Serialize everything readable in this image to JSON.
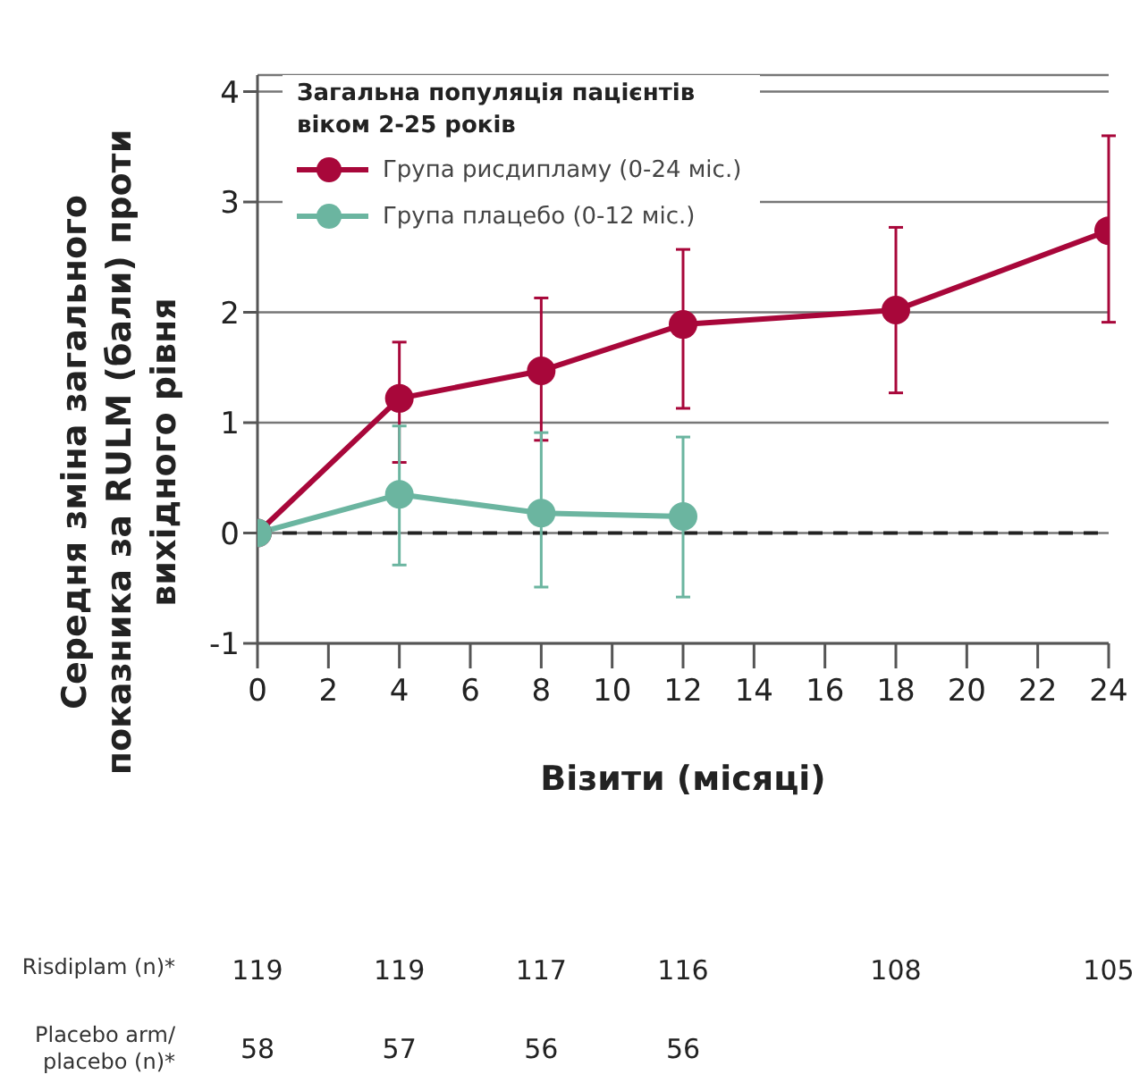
{
  "chart_data": {
    "type": "line",
    "legend_title": "Загальна популяція пацієнтів\nвіком 2-25 років",
    "xlabel": "Візити (місяці)",
    "ylabel": "Середня зміна загального\nпоказника за RULM (бали) проти\nвихідного рівня",
    "series": [
      {
        "name": "Група рисдипламу (0-24 міс.)",
        "color": "#a8073a",
        "x": [
          0,
          4,
          8,
          12,
          18,
          24
        ],
        "values": [
          0,
          1.22,
          1.47,
          1.89,
          2.02,
          2.74
        ],
        "errors": [
          null,
          [
            0.64,
            1.73
          ],
          [
            0.84,
            2.13
          ],
          [
            1.13,
            2.57
          ],
          [
            1.27,
            2.77
          ],
          [
            1.91,
            3.6
          ]
        ]
      },
      {
        "name": "Група плацебо (0-12 міс.)",
        "color": "#6bb5a0",
        "x": [
          0,
          4,
          8,
          12
        ],
        "values": [
          0,
          0.35,
          0.18,
          0.15
        ],
        "errors": [
          null,
          [
            -0.29,
            0.97
          ],
          [
            -0.49,
            0.91
          ],
          [
            -0.58,
            0.87
          ]
        ]
      }
    ],
    "xlim": [
      0,
      24
    ],
    "xticks": [
      0,
      2,
      4,
      6,
      8,
      10,
      12,
      14,
      16,
      18,
      20,
      22,
      24
    ],
    "ylim": [
      -1,
      4.15
    ],
    "yticks": [
      -1,
      0,
      1,
      2,
      3,
      4
    ],
    "grid": "y",
    "legend": "top left",
    "marker": "circle",
    "line_style": "solid",
    "ref_lines": [
      {
        "axis": "y",
        "value": 0,
        "color": "#222222",
        "line_style": "dashed"
      }
    ],
    "annotations": [
      "Risdiplam (n)*",
      "119",
      "119",
      "117",
      "116",
      "108",
      "105",
      "Placebo arm/\nplacebo (n)*",
      "58",
      "57",
      "56",
      "56"
    ]
  }
}
